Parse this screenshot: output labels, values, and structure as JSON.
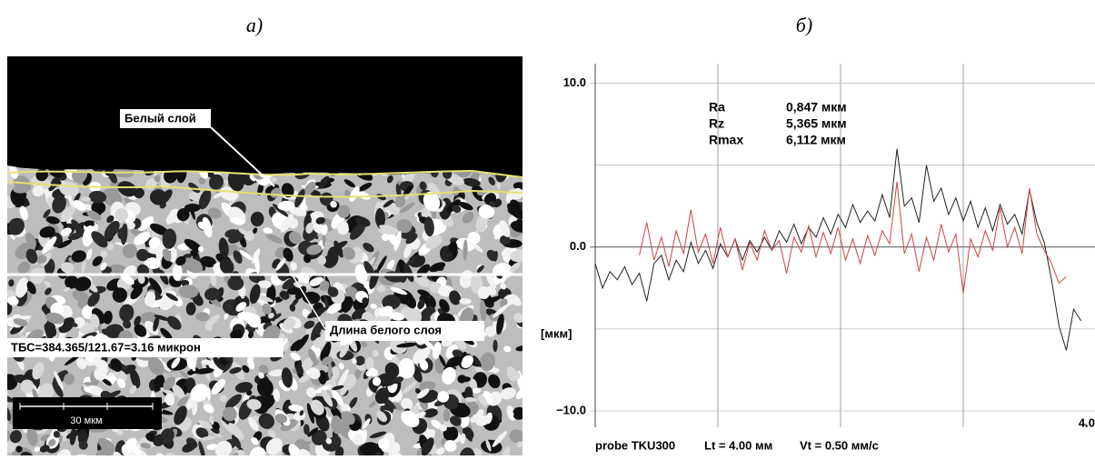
{
  "panels": {
    "a": "а)",
    "b": "б)"
  },
  "micrograph": {
    "white_layer": "Белый слой",
    "layer_length": "Длина белого слоя",
    "thickness": "ТБС=384.365/121.67=3.16 микрон",
    "scale": "30 мкм"
  },
  "chart_data": {
    "type": "line",
    "x": [
      0,
      0.06,
      0.12,
      0.18,
      0.24,
      0.3,
      0.36,
      0.42,
      0.48,
      0.54,
      0.6,
      0.66,
      0.72,
      0.78,
      0.84,
      0.9,
      0.96,
      1.02,
      1.08,
      1.14,
      1.2,
      1.26,
      1.32,
      1.38,
      1.44,
      1.5,
      1.56,
      1.62,
      1.68,
      1.74,
      1.8,
      1.86,
      1.92,
      1.98,
      2.04,
      2.1,
      2.16,
      2.22,
      2.28,
      2.34,
      2.4,
      2.46,
      2.52,
      2.58,
      2.64,
      2.7,
      2.76,
      2.82,
      2.88,
      2.94,
      3,
      3.06,
      3.12,
      3.18,
      3.24,
      3.3,
      3.36,
      3.42,
      3.48,
      3.54,
      3.6,
      3.66,
      3.72,
      3.78,
      3.84,
      3.9,
      3.96
    ],
    "series": [
      {
        "color": "#222222",
        "values": [
          -1.0,
          -2.5,
          -1.5,
          -2.0,
          -1.2,
          -2.3,
          -1.6,
          -3.3,
          -1.0,
          -0.5,
          -2.0,
          -0.8,
          -1.5,
          0.3,
          -1.0,
          -0.2,
          -1.3,
          0.2,
          -0.6,
          0.5,
          -0.8,
          0.4,
          -0.3,
          0.6,
          -0.2,
          1.0,
          0.3,
          1.4,
          0.2,
          1.2,
          0.6,
          1.8,
          0.8,
          2.0,
          1.2,
          2.6,
          1.5,
          2.2,
          1.6,
          3.2,
          1.8,
          6.0,
          2.5,
          3.0,
          1.5,
          5.0,
          2.8,
          3.6,
          2.0,
          3.0,
          1.6,
          2.8,
          1.2,
          2.4,
          1.0,
          2.6,
          1.4,
          2.0,
          0.8,
          3.5,
          1.5,
          0.3,
          -2.0,
          -4.8,
          -6.3,
          -3.8,
          -4.5
        ]
      },
      {
        "color": "#cc4444",
        "values": [
          null,
          null,
          null,
          null,
          null,
          null,
          -0.5,
          1.5,
          -0.8,
          0.6,
          -1.2,
          1.0,
          -0.4,
          2.3,
          -0.3,
          0.8,
          -1.0,
          1.2,
          -0.6,
          0.5,
          -1.4,
          0.3,
          -0.8,
          1.0,
          -0.2,
          0.4,
          -1.6,
          0.6,
          -0.3,
          1.3,
          -0.6,
          0.9,
          -0.4,
          1.2,
          -0.8,
          0.5,
          -1.0,
          0.7,
          -0.5,
          1.0,
          0.2,
          4.0,
          -0.4,
          0.8,
          -1.5,
          0.6,
          -0.8,
          1.4,
          -0.3,
          0.8,
          -2.8,
          0.5,
          -0.6,
          1.0,
          -0.2,
          2.4,
          0.0,
          1.2,
          -0.4,
          3.6,
          0.8,
          -0.2,
          -1.0,
          -2.2,
          -1.8,
          null,
          null
        ]
      }
    ],
    "xlim": [
      0,
      4.0
    ],
    "ylim": [
      -11,
      11.2
    ],
    "xticks": [
      {
        "value": 4,
        "label": "4.0"
      }
    ],
    "xgrid": [
      1,
      2,
      3
    ],
    "yticks": [
      {
        "value": 10,
        "label": "10.0"
      },
      {
        "value": 0,
        "label": "0.0"
      },
      {
        "value": -10,
        "label": "−10.0"
      }
    ],
    "ygrid": [
      5,
      -5
    ],
    "ylabel": "[мкм]",
    "stats": [
      {
        "name": "Ra",
        "value": "0,847 мкм"
      },
      {
        "name": "Rz",
        "value": "5,365 мкм"
      },
      {
        "name": "Rmax",
        "value": "6,112 мкм"
      }
    ],
    "footer": [
      "probe TKU300",
      "Lt = 4.00 мм",
      "Vt = 0.50 мм/с"
    ]
  }
}
